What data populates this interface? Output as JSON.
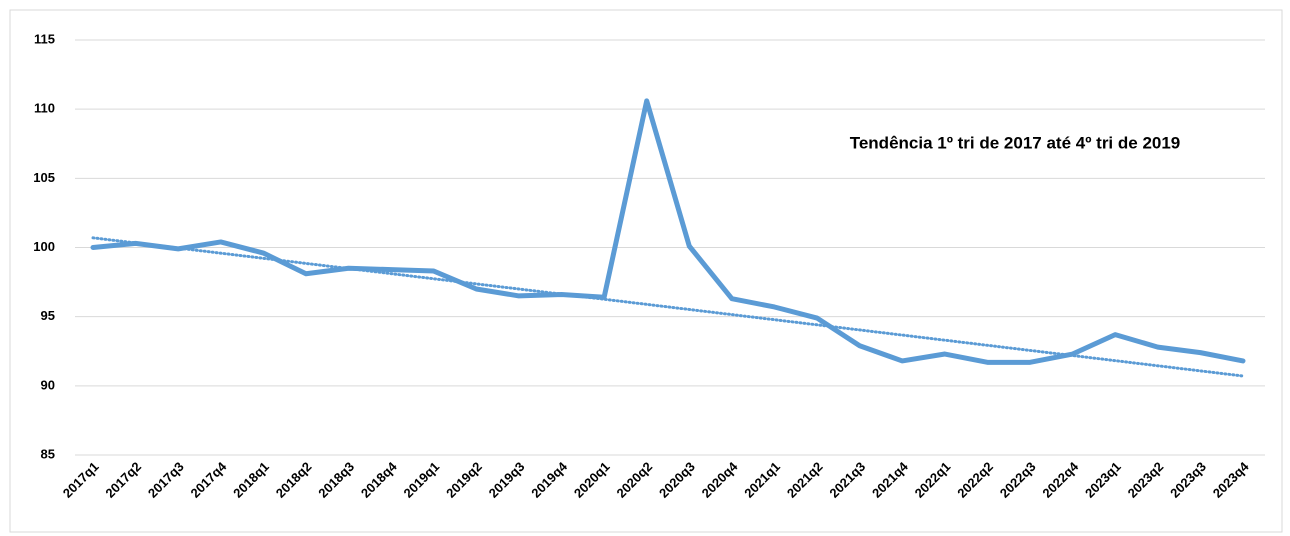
{
  "chart_data": {
    "type": "line",
    "annotation": "Tendência 1º tri de 2017 até 4º tri de 2019",
    "categories": [
      "2017q1",
      "2017q2",
      "2017q3",
      "2017q4",
      "2018q1",
      "2018q2",
      "2018q3",
      "2018q4",
      "2019q1",
      "2019q2",
      "2019q3",
      "2019q4",
      "2020q1",
      "2020q2",
      "2020q3",
      "2020q4",
      "2021q1",
      "2021q2",
      "2021q3",
      "2021q4",
      "2022q1",
      "2022q2",
      "2022q3",
      "2022q4",
      "2023q1",
      "2023q2",
      "2023q3",
      "2023q4"
    ],
    "series": [
      {
        "color": "#5b9bd5",
        "values": [
          100.0,
          100.3,
          99.9,
          100.4,
          99.6,
          98.1,
          98.5,
          98.4,
          98.3,
          97.0,
          96.5,
          96.6,
          96.4,
          110.6,
          100.1,
          96.3,
          95.7,
          94.9,
          92.9,
          91.8,
          92.3,
          91.7,
          91.7,
          92.3,
          93.7,
          92.8,
          92.4,
          91.8
        ]
      },
      {
        "color": "#5b9bd5",
        "style": "dotted",
        "values": [
          100.7,
          100.33,
          99.96,
          99.59,
          99.22,
          98.85,
          98.48,
          98.11,
          97.74,
          97.37,
          97.0,
          96.63,
          96.26,
          95.89,
          95.52,
          95.15,
          94.78,
          94.41,
          94.04,
          93.67,
          93.3,
          92.93,
          92.56,
          92.19,
          91.82,
          91.45,
          91.08,
          90.71
        ]
      }
    ],
    "ylim": [
      85,
      115
    ],
    "yticks": [
      85,
      90,
      95,
      100,
      105,
      110,
      115
    ],
    "grid": true
  }
}
